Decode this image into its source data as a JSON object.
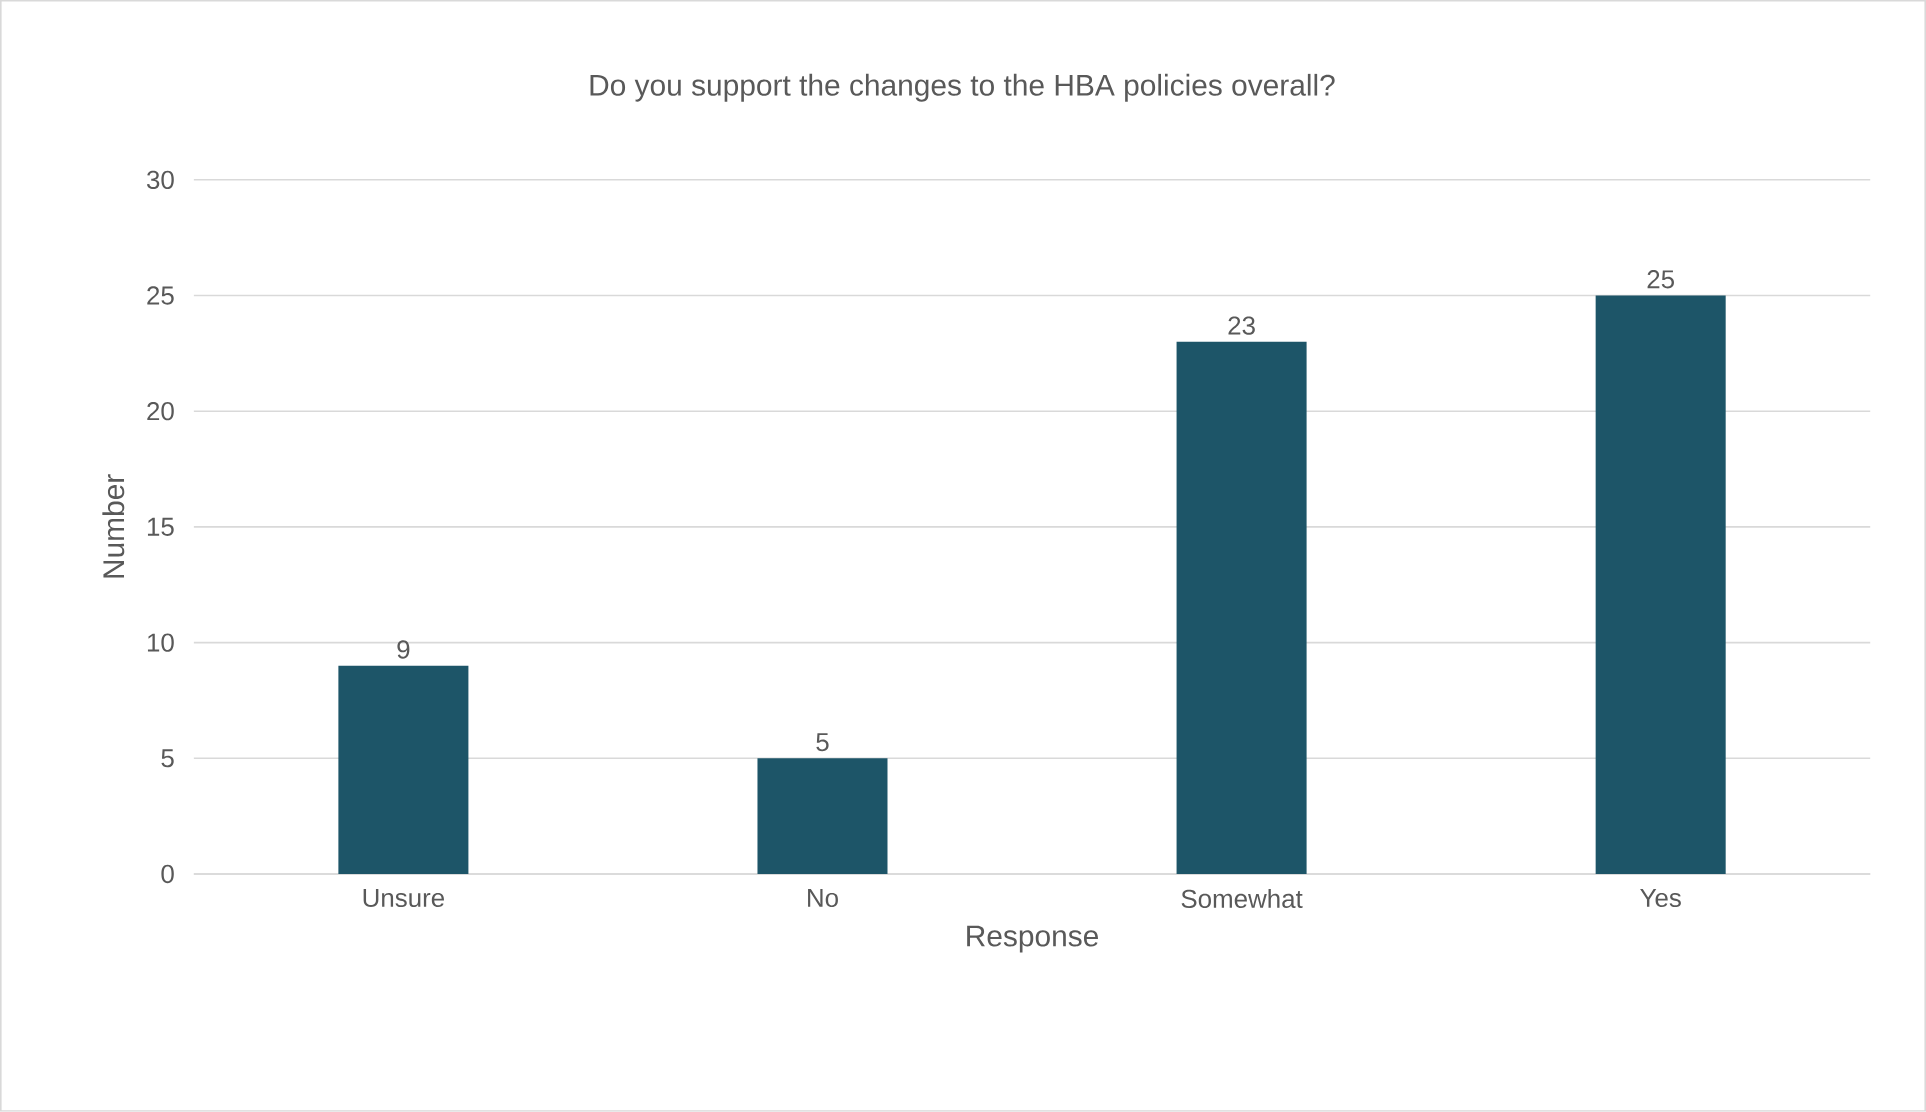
{
  "chart_data": {
    "type": "bar",
    "title": "Do you support the changes to the HBA policies overall?",
    "xlabel": "Response",
    "ylabel": "Number",
    "categories": [
      "Unsure",
      "No",
      "Somewhat",
      "Yes"
    ],
    "values": [
      9,
      5,
      23,
      25
    ],
    "color": "#1d5568",
    "ylim": [
      0,
      30
    ],
    "yticks": [
      0,
      5,
      10,
      15,
      20,
      25,
      30
    ],
    "grid": "y",
    "data_labels": true
  }
}
